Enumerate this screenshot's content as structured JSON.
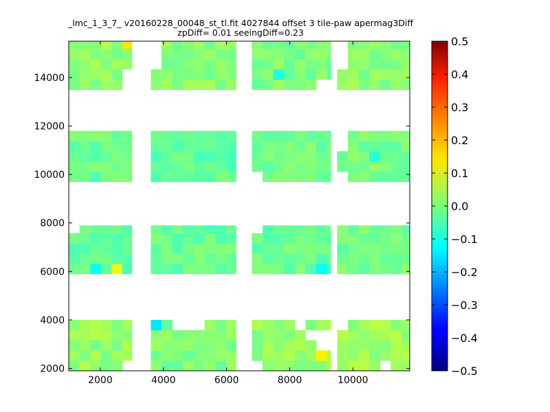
{
  "chart_data": {
    "type": "heatmap",
    "title": "_lmc_1_3_7_ v20160228_00048_st_tl.fit 4027844 offset 3 tile-paw apermag3Diff",
    "subtitle": "zpDiff= 0.01 seeingDiff=0.23",
    "xlabel": "",
    "ylabel": "",
    "xlim": [
      1000,
      11800
    ],
    "ylim": [
      1900,
      15500
    ],
    "xticks": [
      "2000",
      "4000",
      "6000",
      "8000",
      "10000"
    ],
    "yticks": [
      "2000",
      "4000",
      "6000",
      "8000",
      "10000",
      "12000",
      "14000"
    ],
    "cell_size": [
      340,
      420
    ],
    "colormap": "jet",
    "grid": false,
    "colorbar": {
      "range": [
        -0.5,
        0.5
      ],
      "ticks": [
        "0.5",
        "0.4",
        "0.3",
        "0.2",
        "0.1",
        "0.0",
        "−0.1",
        "−0.2",
        "−0.3",
        "−0.4",
        "−0.5"
      ],
      "placement": "right"
    },
    "blocks": [
      {
        "x": [
          1000,
          3000
        ],
        "y": [
          13500,
          15500
        ],
        "value": 0.02
      },
      {
        "x": [
          3600,
          6300
        ],
        "y": [
          13500,
          15500
        ],
        "value": 0.01
      },
      {
        "x": [
          6800,
          9300
        ],
        "y": [
          13500,
          15500
        ],
        "value": 0.0
      },
      {
        "x": [
          9500,
          11800
        ],
        "y": [
          13500,
          15500
        ],
        "value": 0.01
      },
      {
        "x": [
          1000,
          3000
        ],
        "y": [
          9700,
          11800
        ],
        "value": -0.02
      },
      {
        "x": [
          3600,
          6300
        ],
        "y": [
          9700,
          11800
        ],
        "value": -0.03
      },
      {
        "x": [
          6800,
          9300
        ],
        "y": [
          9700,
          11800
        ],
        "value": -0.01
      },
      {
        "x": [
          9500,
          11800
        ],
        "y": [
          9700,
          11800
        ],
        "value": -0.01
      },
      {
        "x": [
          1000,
          3000
        ],
        "y": [
          5900,
          7900
        ],
        "value": -0.03
      },
      {
        "x": [
          3600,
          6300
        ],
        "y": [
          5900,
          7900
        ],
        "value": -0.02
      },
      {
        "x": [
          6800,
          9300
        ],
        "y": [
          5900,
          7900
        ],
        "value": -0.02
      },
      {
        "x": [
          9500,
          11800
        ],
        "y": [
          5900,
          7900
        ],
        "value": -0.01
      },
      {
        "x": [
          1000,
          3000
        ],
        "y": [
          1900,
          4000
        ],
        "value": 0.02
      },
      {
        "x": [
          3600,
          6300
        ],
        "y": [
          1900,
          4000
        ],
        "value": 0.0
      },
      {
        "x": [
          6800,
          9300
        ],
        "y": [
          1900,
          4000
        ],
        "value": 0.02
      },
      {
        "x": [
          9500,
          11800
        ],
        "y": [
          1900,
          4000
        ],
        "value": 0.03
      }
    ],
    "highlights": [
      {
        "x": 2900,
        "y": 15300,
        "value": 0.15
      },
      {
        "x": 1900,
        "y": 5900,
        "value": -0.12
      },
      {
        "x": 2600,
        "y": 5900,
        "value": 0.1
      },
      {
        "x": 9000,
        "y": 6300,
        "value": -0.12
      },
      {
        "x": 3800,
        "y": 3800,
        "value": -0.15
      },
      {
        "x": 9000,
        "y": 2400,
        "value": 0.14
      },
      {
        "x": 7800,
        "y": 14200,
        "value": -0.1
      },
      {
        "x": 10800,
        "y": 10900,
        "value": -0.09
      }
    ],
    "holes": [
      {
        "x": [
          2700,
          3000
        ],
        "y": [
          13500,
          14500
        ]
      },
      {
        "x": [
          3600,
          3900
        ],
        "y": [
          14500,
          15500
        ]
      },
      {
        "x": [
          9000,
          9300
        ],
        "y": [
          13500,
          14000
        ]
      },
      {
        "x": [
          9500,
          9800
        ],
        "y": [
          14400,
          15500
        ]
      },
      {
        "x": [
          9500,
          9800
        ],
        "y": [
          10800,
          11800
        ]
      },
      {
        "x": [
          9300,
          9800
        ],
        "y": [
          9700,
          10300
        ]
      },
      {
        "x": [
          3300,
          3600
        ],
        "y": [
          10200,
          11800
        ]
      },
      {
        "x": [
          3300,
          3600
        ],
        "y": [
          7500,
          7900
        ]
      },
      {
        "x": [
          6800,
          7300
        ],
        "y": [
          9700,
          10000
        ]
      },
      {
        "x": [
          1000,
          1400
        ],
        "y": [
          7500,
          7900
        ]
      },
      {
        "x": [
          6800,
          7300
        ],
        "y": [
          7500,
          7900
        ]
      },
      {
        "x": [
          6800,
          7200
        ],
        "y": [
          5400,
          5900
        ]
      },
      {
        "x": [
          8000,
          9300
        ],
        "y": [
          5400,
          5900
        ]
      },
      {
        "x": [
          9500,
          10100
        ],
        "y": [
          5400,
          5900
        ]
      },
      {
        "x": [
          10800,
          11800
        ],
        "y": [
          5400,
          5900
        ]
      },
      {
        "x": [
          4300,
          5200
        ],
        "y": [
          3600,
          4000
        ]
      },
      {
        "x": [
          8200,
          8600
        ],
        "y": [
          3600,
          4000
        ]
      },
      {
        "x": [
          8600,
          9300
        ],
        "y": [
          3200,
          3600
        ]
      },
      {
        "x": [
          9000,
          9300
        ],
        "y": [
          2800,
          3200
        ]
      },
      {
        "x": [
          9500,
          9800
        ],
        "y": [
          3600,
          4000
        ]
      },
      {
        "x": [
          2800,
          3000
        ],
        "y": [
          1900,
          2300
        ]
      },
      {
        "x": [
          6800,
          7000
        ],
        "y": [
          1900,
          2300
        ]
      },
      {
        "x": [
          10900,
          11300
        ],
        "y": [
          1900,
          2300
        ]
      }
    ]
  }
}
